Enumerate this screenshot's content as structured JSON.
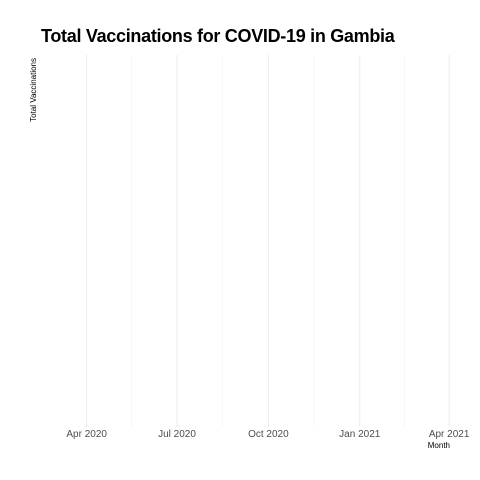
{
  "chart_data": {
    "type": "line",
    "title": "Total Vaccinations for COVID-19 in Gambia",
    "xlabel": "Month",
    "ylabel": "Total Vaccinations",
    "x_axis": {
      "scale": "date",
      "range": [
        "2020-02-15",
        "2021-04-18"
      ],
      "ticks": [
        "2020-04-01",
        "2020-07-01",
        "2020-10-01",
        "2021-01-01",
        "2021-04-01"
      ],
      "tick_labels": [
        "Apr 2020",
        "Jul 2020",
        "Oct 2020",
        "Jan 2021",
        "Apr 2021"
      ],
      "minor_ticks": [
        "2020-05-16",
        "2020-08-16",
        "2020-11-16",
        "2021-02-15"
      ]
    },
    "y_axis": {
      "tick_labels": []
    },
    "series": [],
    "grid": true,
    "legend": "none",
    "colors": {
      "background": "#ffffff",
      "grid_major": "#ebebeb",
      "grid_minor": "#f2f2f2",
      "tick_text": "#4d4d4d",
      "title_text": "#000000"
    }
  }
}
